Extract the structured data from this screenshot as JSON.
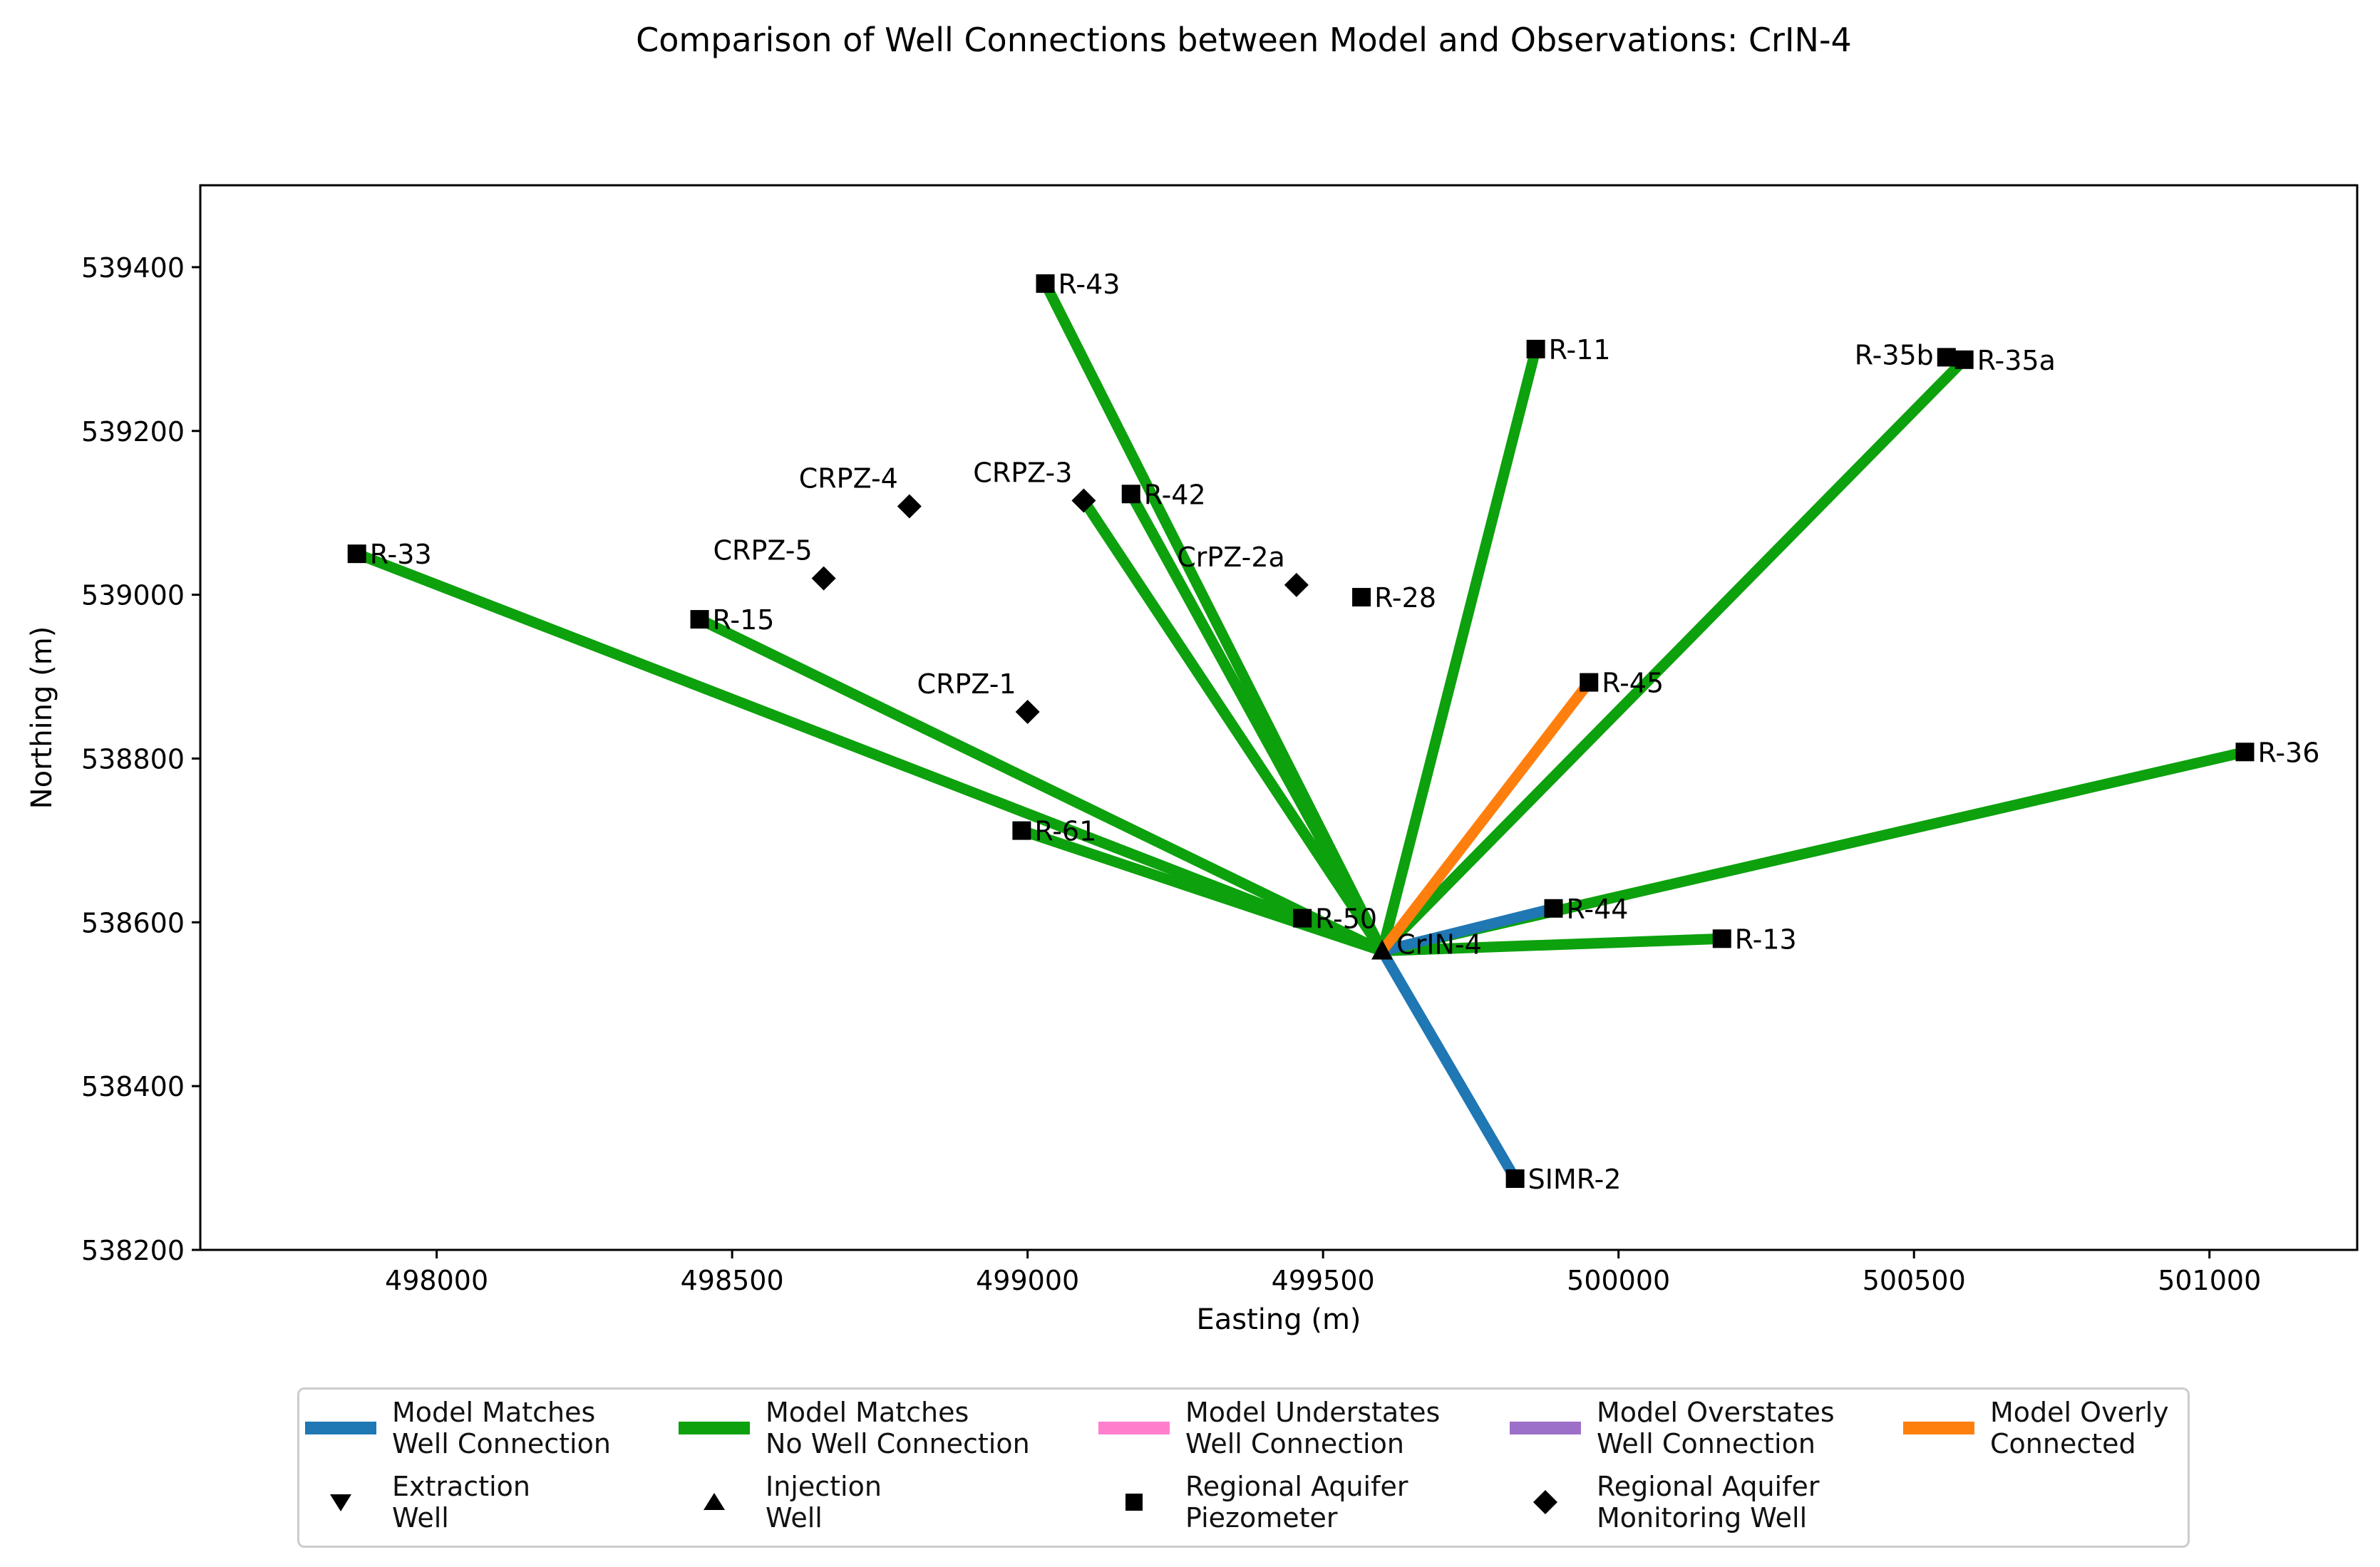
{
  "chart_data": {
    "type": "scatter",
    "title": "Comparison of Well Connections between Model and Observations: CrIN-4",
    "xlabel": "Easting (m)",
    "ylabel": "Northing (m)",
    "xlim": [
      497600,
      501250
    ],
    "ylim": [
      538200,
      539500
    ],
    "xticks": [
      498000,
      498500,
      499000,
      499500,
      500000,
      500500,
      501000
    ],
    "yticks": [
      538200,
      538400,
      538600,
      538800,
      539000,
      539200,
      539400
    ],
    "grid": false,
    "source_well": {
      "name": "CrIN-4",
      "x": 499600,
      "y": 538565,
      "kind": "injection"
    },
    "wells": [
      {
        "name": "R-43",
        "x": 499030,
        "y": 539380,
        "kind": "piezometer",
        "label_side": "right"
      },
      {
        "name": "R-11",
        "x": 499860,
        "y": 539300,
        "kind": "piezometer",
        "label_side": "right"
      },
      {
        "name": "R-35b",
        "x": 500555,
        "y": 539290,
        "kind": "piezometer",
        "label_side": "left"
      },
      {
        "name": "R-35a",
        "x": 500585,
        "y": 539287,
        "kind": "piezometer",
        "label_side": "right"
      },
      {
        "name": "R-42",
        "x": 499175,
        "y": 539123,
        "kind": "piezometer",
        "label_side": "right"
      },
      {
        "name": "R-33",
        "x": 497865,
        "y": 539050,
        "kind": "piezometer",
        "label_side": "right"
      },
      {
        "name": "R-15",
        "x": 498445,
        "y": 538970,
        "kind": "piezometer",
        "label_side": "right"
      },
      {
        "name": "R-28",
        "x": 499565,
        "y": 538997,
        "kind": "piezometer",
        "label_side": "right"
      },
      {
        "name": "R-45",
        "x": 499950,
        "y": 538893,
        "kind": "piezometer",
        "label_side": "right"
      },
      {
        "name": "R-36",
        "x": 501060,
        "y": 538808,
        "kind": "piezometer",
        "label_side": "right"
      },
      {
        "name": "R-61",
        "x": 498990,
        "y": 538712,
        "kind": "piezometer",
        "label_side": "right"
      },
      {
        "name": "R-50",
        "x": 499465,
        "y": 538605,
        "kind": "piezometer",
        "label_side": "right"
      },
      {
        "name": "R-44",
        "x": 499890,
        "y": 538617,
        "kind": "piezometer",
        "label_side": "right"
      },
      {
        "name": "R-13",
        "x": 500175,
        "y": 538580,
        "kind": "piezometer",
        "label_side": "right"
      },
      {
        "name": "SIMR-2",
        "x": 499825,
        "y": 538287,
        "kind": "piezometer",
        "label_side": "right"
      },
      {
        "name": "CRPZ-4",
        "x": 498800,
        "y": 539108,
        "kind": "monitoring",
        "label_side": "upper-left"
      },
      {
        "name": "CRPZ-3",
        "x": 499095,
        "y": 539115,
        "kind": "monitoring",
        "label_side": "upper-left"
      },
      {
        "name": "CRPZ-5",
        "x": 498655,
        "y": 539020,
        "kind": "monitoring",
        "label_side": "upper-left"
      },
      {
        "name": "CrPZ-2a",
        "x": 499455,
        "y": 539012,
        "kind": "monitoring",
        "label_side": "upper-left"
      },
      {
        "name": "CRPZ-1",
        "x": 499000,
        "y": 538857,
        "kind": "monitoring",
        "label_side": "upper-left"
      }
    ],
    "connections": [
      {
        "to": "R-43",
        "category": "Model Matches No Well Connection"
      },
      {
        "to": "R-42",
        "category": "Model Matches No Well Connection"
      },
      {
        "to": "CRPZ-3",
        "category": "Model Matches No Well Connection"
      },
      {
        "to": "R-11",
        "category": "Model Matches No Well Connection"
      },
      {
        "to": "R-35a",
        "category": "Model Matches No Well Connection"
      },
      {
        "to": "R-33",
        "category": "Model Matches No Well Connection"
      },
      {
        "to": "R-15",
        "category": "Model Matches No Well Connection"
      },
      {
        "to": "R-61",
        "category": "Model Matches No Well Connection"
      },
      {
        "to": "R-50",
        "category": "Model Matches No Well Connection"
      },
      {
        "to": "R-36",
        "category": "Model Matches No Well Connection"
      },
      {
        "to": "R-13",
        "category": "Model Matches No Well Connection"
      },
      {
        "to": "R-44",
        "category": "Model Matches Well Connection"
      },
      {
        "to": "SIMR-2",
        "category": "Model Matches Well Connection"
      },
      {
        "to": "R-45",
        "category": "Model Overly Connected"
      }
    ],
    "legend": {
      "placement": "below",
      "line_entries": [
        {
          "lines": [
            "Model Matches",
            "Well Connection"
          ],
          "color": "#1f77b4",
          "category": "Model Matches Well Connection"
        },
        {
          "lines": [
            "Model Matches",
            "No Well Connection"
          ],
          "color": "#0da10d",
          "category": "Model Matches No Well Connection"
        },
        {
          "lines": [
            "Model Understates",
            "Well Connection"
          ],
          "color": "#ff7fcd",
          "category": "Model Understates Well Connection"
        },
        {
          "lines": [
            "Model Overstates",
            "Well Connection"
          ],
          "color": "#9c6fc8",
          "category": "Model Overstates Well Connection"
        },
        {
          "lines": [
            "Model Overly",
            "Connected"
          ],
          "color": "#ff7f0e",
          "category": "Model Overly Connected"
        }
      ],
      "marker_entries": [
        {
          "lines": [
            "Extraction",
            "Well"
          ],
          "marker": "triangle-down"
        },
        {
          "lines": [
            "Injection",
            "Well"
          ],
          "marker": "triangle-up"
        },
        {
          "lines": [
            "Regional Aquifer",
            "Piezometer"
          ],
          "marker": "square"
        },
        {
          "lines": [
            "Regional Aquifer",
            "Monitoring Well"
          ],
          "marker": "diamond"
        }
      ]
    }
  }
}
